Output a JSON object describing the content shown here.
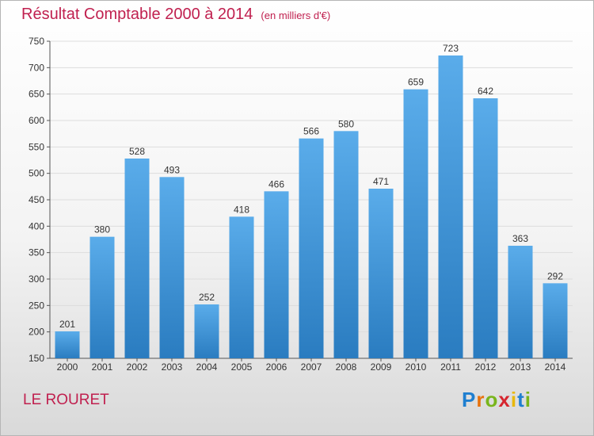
{
  "header": {
    "title": "Résultat Comptable 2000 à 2014",
    "unit": "(en milliers d'€)"
  },
  "footer": {
    "commune": "LE ROURET",
    "brand": "Proxiti"
  },
  "colors": {
    "title": "#c0204f",
    "bar_top": "#5aacea",
    "bar_bottom": "#2a7cc0"
  },
  "chart_data": {
    "type": "bar",
    "title": "Résultat Comptable 2000 à 2014",
    "xlabel": "",
    "ylabel": "",
    "categories": [
      "2000",
      "2001",
      "2002",
      "2003",
      "2004",
      "2005",
      "2006",
      "2007",
      "2008",
      "2009",
      "2010",
      "2011",
      "2012",
      "2013",
      "2014"
    ],
    "values": [
      201,
      380,
      528,
      493,
      252,
      418,
      466,
      566,
      580,
      471,
      659,
      723,
      642,
      363,
      292
    ],
    "ylim": [
      150,
      750
    ],
    "yticks": [
      150,
      200,
      250,
      300,
      350,
      400,
      450,
      500,
      550,
      600,
      650,
      700,
      750
    ],
    "grid": true,
    "legend": "none"
  }
}
